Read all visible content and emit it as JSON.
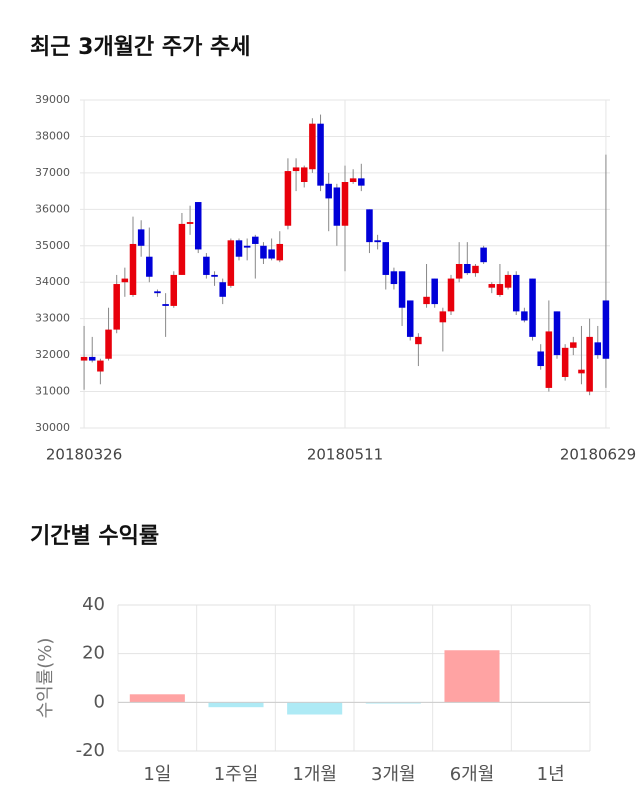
{
  "chart_data": [
    {
      "type": "candlestick",
      "title": "최근 3개월간 주가 추세",
      "categories": [
        "20180326",
        null,
        null,
        null,
        null,
        null,
        null,
        null,
        null,
        null,
        null,
        null,
        null,
        null,
        null,
        null,
        null,
        null,
        null,
        null,
        null,
        null,
        null,
        null,
        null,
        null,
        null,
        null,
        null,
        null,
        null,
        null,
        "20180511",
        null,
        null,
        null,
        null,
        null,
        null,
        null,
        null,
        null,
        null,
        null,
        null,
        null,
        null,
        null,
        null,
        null,
        null,
        null,
        null,
        null,
        null,
        null,
        null,
        null,
        null,
        null,
        null,
        null,
        null,
        null,
        "20180629"
      ],
      "open": [
        31850,
        31950,
        31550,
        31900,
        32700,
        34000,
        33650,
        35450,
        34700,
        33750,
        33400,
        33350,
        34200,
        35600,
        36200,
        34700,
        34200,
        34000,
        33900,
        35150,
        35000,
        35250,
        35000,
        34900,
        34600,
        35550,
        37050,
        36750,
        37100,
        38350,
        36700,
        36600,
        35550,
        36750,
        36850,
        36000,
        35150,
        35100,
        34300,
        34300,
        33500,
        32300,
        33400,
        34100,
        32900,
        33200,
        34100,
        34500,
        34250,
        34950,
        33850,
        33650,
        33850,
        34200,
        33200,
        34100,
        32100,
        31100,
        33200,
        31400,
        32200,
        31500,
        31000,
        32350,
        33500
      ],
      "high": [
        32800,
        32500,
        31900,
        33300,
        34200,
        34400,
        35800,
        35700,
        35500,
        33800,
        33700,
        34300,
        35900,
        36100,
        36200,
        34800,
        34300,
        34100,
        35200,
        35200,
        35200,
        35300,
        35100,
        35200,
        35400,
        37400,
        37400,
        37200,
        38500,
        38600,
        37000,
        36700,
        37200,
        37100,
        37250,
        36000,
        35300,
        35100,
        34400,
        34300,
        33500,
        32600,
        34500,
        34100,
        33300,
        34200,
        35100,
        35100,
        34500,
        35000,
        34000,
        34500,
        34300,
        34300,
        33300,
        34100,
        32300,
        33500,
        33200,
        32300,
        32500,
        32800,
        33000,
        32800,
        37500
      ],
      "low": [
        31050,
        31800,
        31200,
        31850,
        32600,
        33600,
        33600,
        34700,
        34000,
        33600,
        32500,
        33300,
        34200,
        35300,
        34800,
        34100,
        33900,
        33400,
        33850,
        34600,
        34600,
        34100,
        34500,
        34600,
        34550,
        35450,
        36500,
        36600,
        37000,
        36500,
        35400,
        35000,
        34300,
        36700,
        36500,
        34800,
        34900,
        33800,
        33800,
        32800,
        32400,
        31700,
        33300,
        33300,
        32100,
        33100,
        34000,
        34200,
        34150,
        34500,
        33700,
        33600,
        33800,
        33100,
        32900,
        32400,
        31600,
        31000,
        31900,
        31300,
        32000,
        31200,
        30900,
        31900,
        31100
      ],
      "close": [
        31950,
        31850,
        31850,
        32700,
        33950,
        34100,
        35050,
        35000,
        34150,
        33700,
        33350,
        34200,
        35600,
        35650,
        34900,
        34200,
        34150,
        33600,
        35150,
        34700,
        34950,
        35050,
        34650,
        34650,
        35050,
        37050,
        37150,
        37150,
        38350,
        36650,
        36300,
        35550,
        36750,
        36850,
        36650,
        35100,
        35100,
        34200,
        33950,
        33300,
        32500,
        32500,
        33600,
        33400,
        33200,
        34100,
        34500,
        34250,
        34450,
        34550,
        33950,
        33950,
        34200,
        33200,
        32950,
        32500,
        31700,
        32650,
        32000,
        32200,
        32350,
        31600,
        32500,
        32000,
        31900
      ],
      "up_color": "#e8000b",
      "down_color": "#0000d8",
      "ylim": [
        30000,
        39000
      ],
      "yticks": [
        30000,
        31000,
        32000,
        33000,
        34000,
        35000,
        36000,
        37000,
        38000,
        39000
      ],
      "grid": true
    },
    {
      "type": "bar",
      "title": "기간별 수익률",
      "ylabel": "수익률(%)",
      "categories": [
        "1일",
        "1주일",
        "1개월",
        "3개월",
        "6개월",
        "1년"
      ],
      "values": [
        3.3,
        -2,
        -5,
        -0.5,
        21.4,
        -0.1
      ],
      "colors": [
        "#ffa3a3",
        "#aeeaf5",
        "#aeeaf5",
        "#aeeaf5",
        "#ffa3a3",
        "#aeeaf5"
      ],
      "ylim": [
        -20,
        40
      ],
      "yticks": [
        -20,
        0,
        20,
        40
      ],
      "grid": true
    }
  ]
}
